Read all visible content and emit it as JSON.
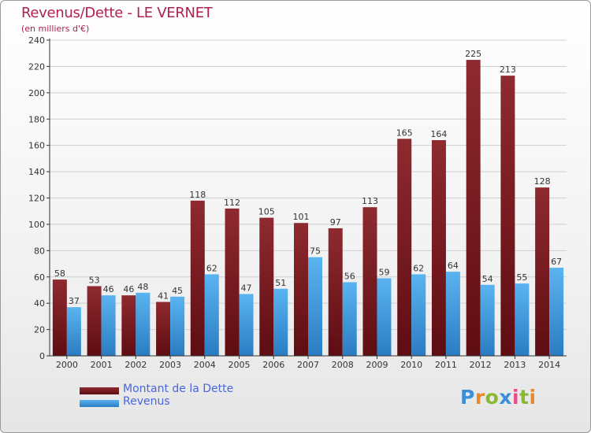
{
  "title": "Revenus/Dette - LE VERNET",
  "subtitle": "(en milliers d'€)",
  "chart_data": {
    "type": "bar",
    "categories": [
      "2000",
      "2001",
      "2002",
      "2003",
      "2004",
      "2005",
      "2006",
      "2007",
      "2008",
      "2009",
      "2010",
      "2011",
      "2012",
      "2013",
      "2014"
    ],
    "series": [
      {
        "name": "Montant de la Dette",
        "values": [
          58,
          53,
          46,
          41,
          118,
          112,
          105,
          101,
          97,
          113,
          165,
          164,
          225,
          213,
          128
        ],
        "color": "#7a1a20"
      },
      {
        "name": "Revenus",
        "values": [
          37,
          46,
          48,
          45,
          62,
          47,
          51,
          75,
          56,
          59,
          62,
          64,
          54,
          55,
          67
        ],
        "color": "#3a9ee0"
      }
    ],
    "ylim": [
      0,
      240
    ],
    "yticks": [
      0,
      20,
      40,
      60,
      80,
      100,
      120,
      140,
      160,
      180,
      200,
      220,
      240
    ],
    "grid": true,
    "data_labels": true,
    "legend_position": "bottom-left"
  },
  "legend": {
    "items": [
      {
        "label": "Montant de la Dette",
        "color": "#7a1a20"
      },
      {
        "label": "Revenus",
        "color": "#3a9ee0"
      }
    ]
  },
  "logo": {
    "letters": [
      "P",
      "r",
      "o",
      "x",
      "i",
      "t",
      "i"
    ],
    "colors": [
      "#3a8fd8",
      "#e8892a",
      "#8ab832",
      "#3a8fd8",
      "#e84a8a",
      "#8ab832",
      "#e8892a"
    ]
  }
}
